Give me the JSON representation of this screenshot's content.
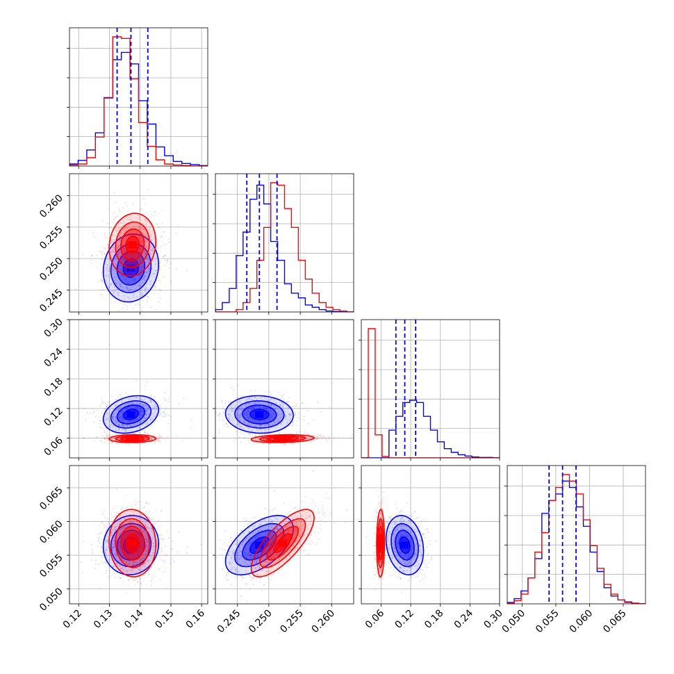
{
  "chart_data": {
    "type": "corner",
    "description_free": true,
    "grid": true,
    "colors": {
      "series_a": "#0000ff",
      "series_b": "#ff0000",
      "quantile_lines": "#0000ff"
    },
    "parameters": [
      {
        "index": 0,
        "range": [
          0.117,
          0.162
        ],
        "ticks": [
          0.12,
          0.13,
          0.14,
          0.15,
          0.16
        ],
        "tick_labels": [
          "0.12",
          "0.13",
          "0.14",
          "0.15",
          "0.16"
        ]
      },
      {
        "index": 1,
        "range": [
          0.2415,
          0.2635
        ],
        "ticks": [
          0.245,
          0.25,
          0.255,
          0.26
        ],
        "tick_labels": [
          "0.245",
          "0.250",
          "0.255",
          "0.260"
        ]
      },
      {
        "index": 2,
        "range": [
          0.02,
          0.3
        ],
        "ticks": [
          0.06,
          0.12,
          0.18,
          0.24,
          0.3
        ],
        "tick_labels": [
          "0.06",
          "0.12",
          "0.18",
          "0.24",
          "0.30"
        ]
      },
      {
        "index": 3,
        "range": [
          0.0478,
          0.0683
        ],
        "ticks": [
          0.05,
          0.055,
          0.06,
          0.065
        ],
        "tick_labels": [
          "0.050",
          "0.055",
          "0.060",
          "0.065"
        ]
      }
    ],
    "series": [
      {
        "color": "#0000ff",
        "means": [
          0.137,
          0.2485,
          0.108,
          0.0565
        ],
        "stds": [
          0.0045,
          0.0027,
          0.019,
          0.0022
        ],
        "quantiles_16_50_84": [
          [
            0.1325,
            0.137,
            0.1425
          ],
          [
            0.2465,
            0.2485,
            0.2513
          ],
          [
            0.09,
            0.108,
            0.13
          ],
          [
            0.054,
            0.056,
            0.058
          ]
        ],
        "correlations": {
          "0-1": 0.1,
          "0-2": 0.25,
          "0-3": 0.05,
          "1-2": -0.05,
          "1-3": 0.55,
          "2-3": -0.2
        },
        "hist1d": [
          [
            0.004,
            0.011,
            0.031,
            0.064,
            0.132,
            0.205,
            0.219,
            0.197,
            0.126,
            0.081,
            0.037,
            0.02,
            0.009,
            0.005,
            0.003,
            0.001
          ],
          [
            0.005,
            0.02,
            0.05,
            0.12,
            0.17,
            0.24,
            0.27,
            0.23,
            0.15,
            0.11,
            0.06,
            0.04,
            0.03,
            0.015,
            0.01,
            0.005,
            0.002,
            0.001,
            0.0,
            0.0
          ],
          [
            0.0,
            0.0,
            0.0,
            0.0,
            0.06,
            0.09,
            0.12,
            0.125,
            0.12,
            0.09,
            0.06,
            0.035,
            0.02,
            0.012,
            0.007,
            0.004,
            0.002,
            0.001,
            0.001,
            0.0
          ],
          [
            0.002,
            0.008,
            0.02,
            0.04,
            0.07,
            0.14,
            0.16,
            0.17,
            0.19,
            0.18,
            0.15,
            0.12,
            0.08,
            0.05,
            0.025,
            0.012,
            0.006,
            0.003,
            0.001,
            0.0
          ]
        ]
      },
      {
        "color": "#ff0000",
        "means": [
          0.1375,
          0.2522,
          0.059,
          0.0568
        ],
        "stds": [
          0.0038,
          0.0025,
          0.004,
          0.0025
        ],
        "correlations": {
          "0-1": 0.1,
          "0-2": 0.05,
          "0-3": -0.05,
          "1-2": 0.2,
          "1-3": 0.75,
          "2-3": 0.05
        },
        "hist1d": [
          [
            0.002,
            0.004,
            0.016,
            0.056,
            0.131,
            0.249,
            0.246,
            0.168,
            0.084,
            0.038,
            0.012,
            0.004,
            0.002,
            0.001,
            0.0,
            0.0
          ],
          [
            0.0,
            0.0,
            0.0,
            0.005,
            0.02,
            0.05,
            0.11,
            0.18,
            0.275,
            0.27,
            0.22,
            0.18,
            0.11,
            0.07,
            0.04,
            0.02,
            0.01,
            0.005,
            0.002,
            0.0
          ],
          [
            0.0,
            0.28,
            0.05,
            0.003,
            0.0,
            0.0,
            0.0,
            0.0,
            0.0,
            0.0,
            0.0,
            0.0,
            0.0,
            0.0,
            0.0,
            0.0,
            0.0,
            0.0,
            0.0,
            0.0
          ],
          [
            0.001,
            0.005,
            0.015,
            0.04,
            0.08,
            0.11,
            0.16,
            0.18,
            0.2,
            0.19,
            0.17,
            0.13,
            0.09,
            0.055,
            0.03,
            0.015,
            0.006,
            0.002,
            0.001,
            0.0
          ]
        ]
      }
    ]
  }
}
